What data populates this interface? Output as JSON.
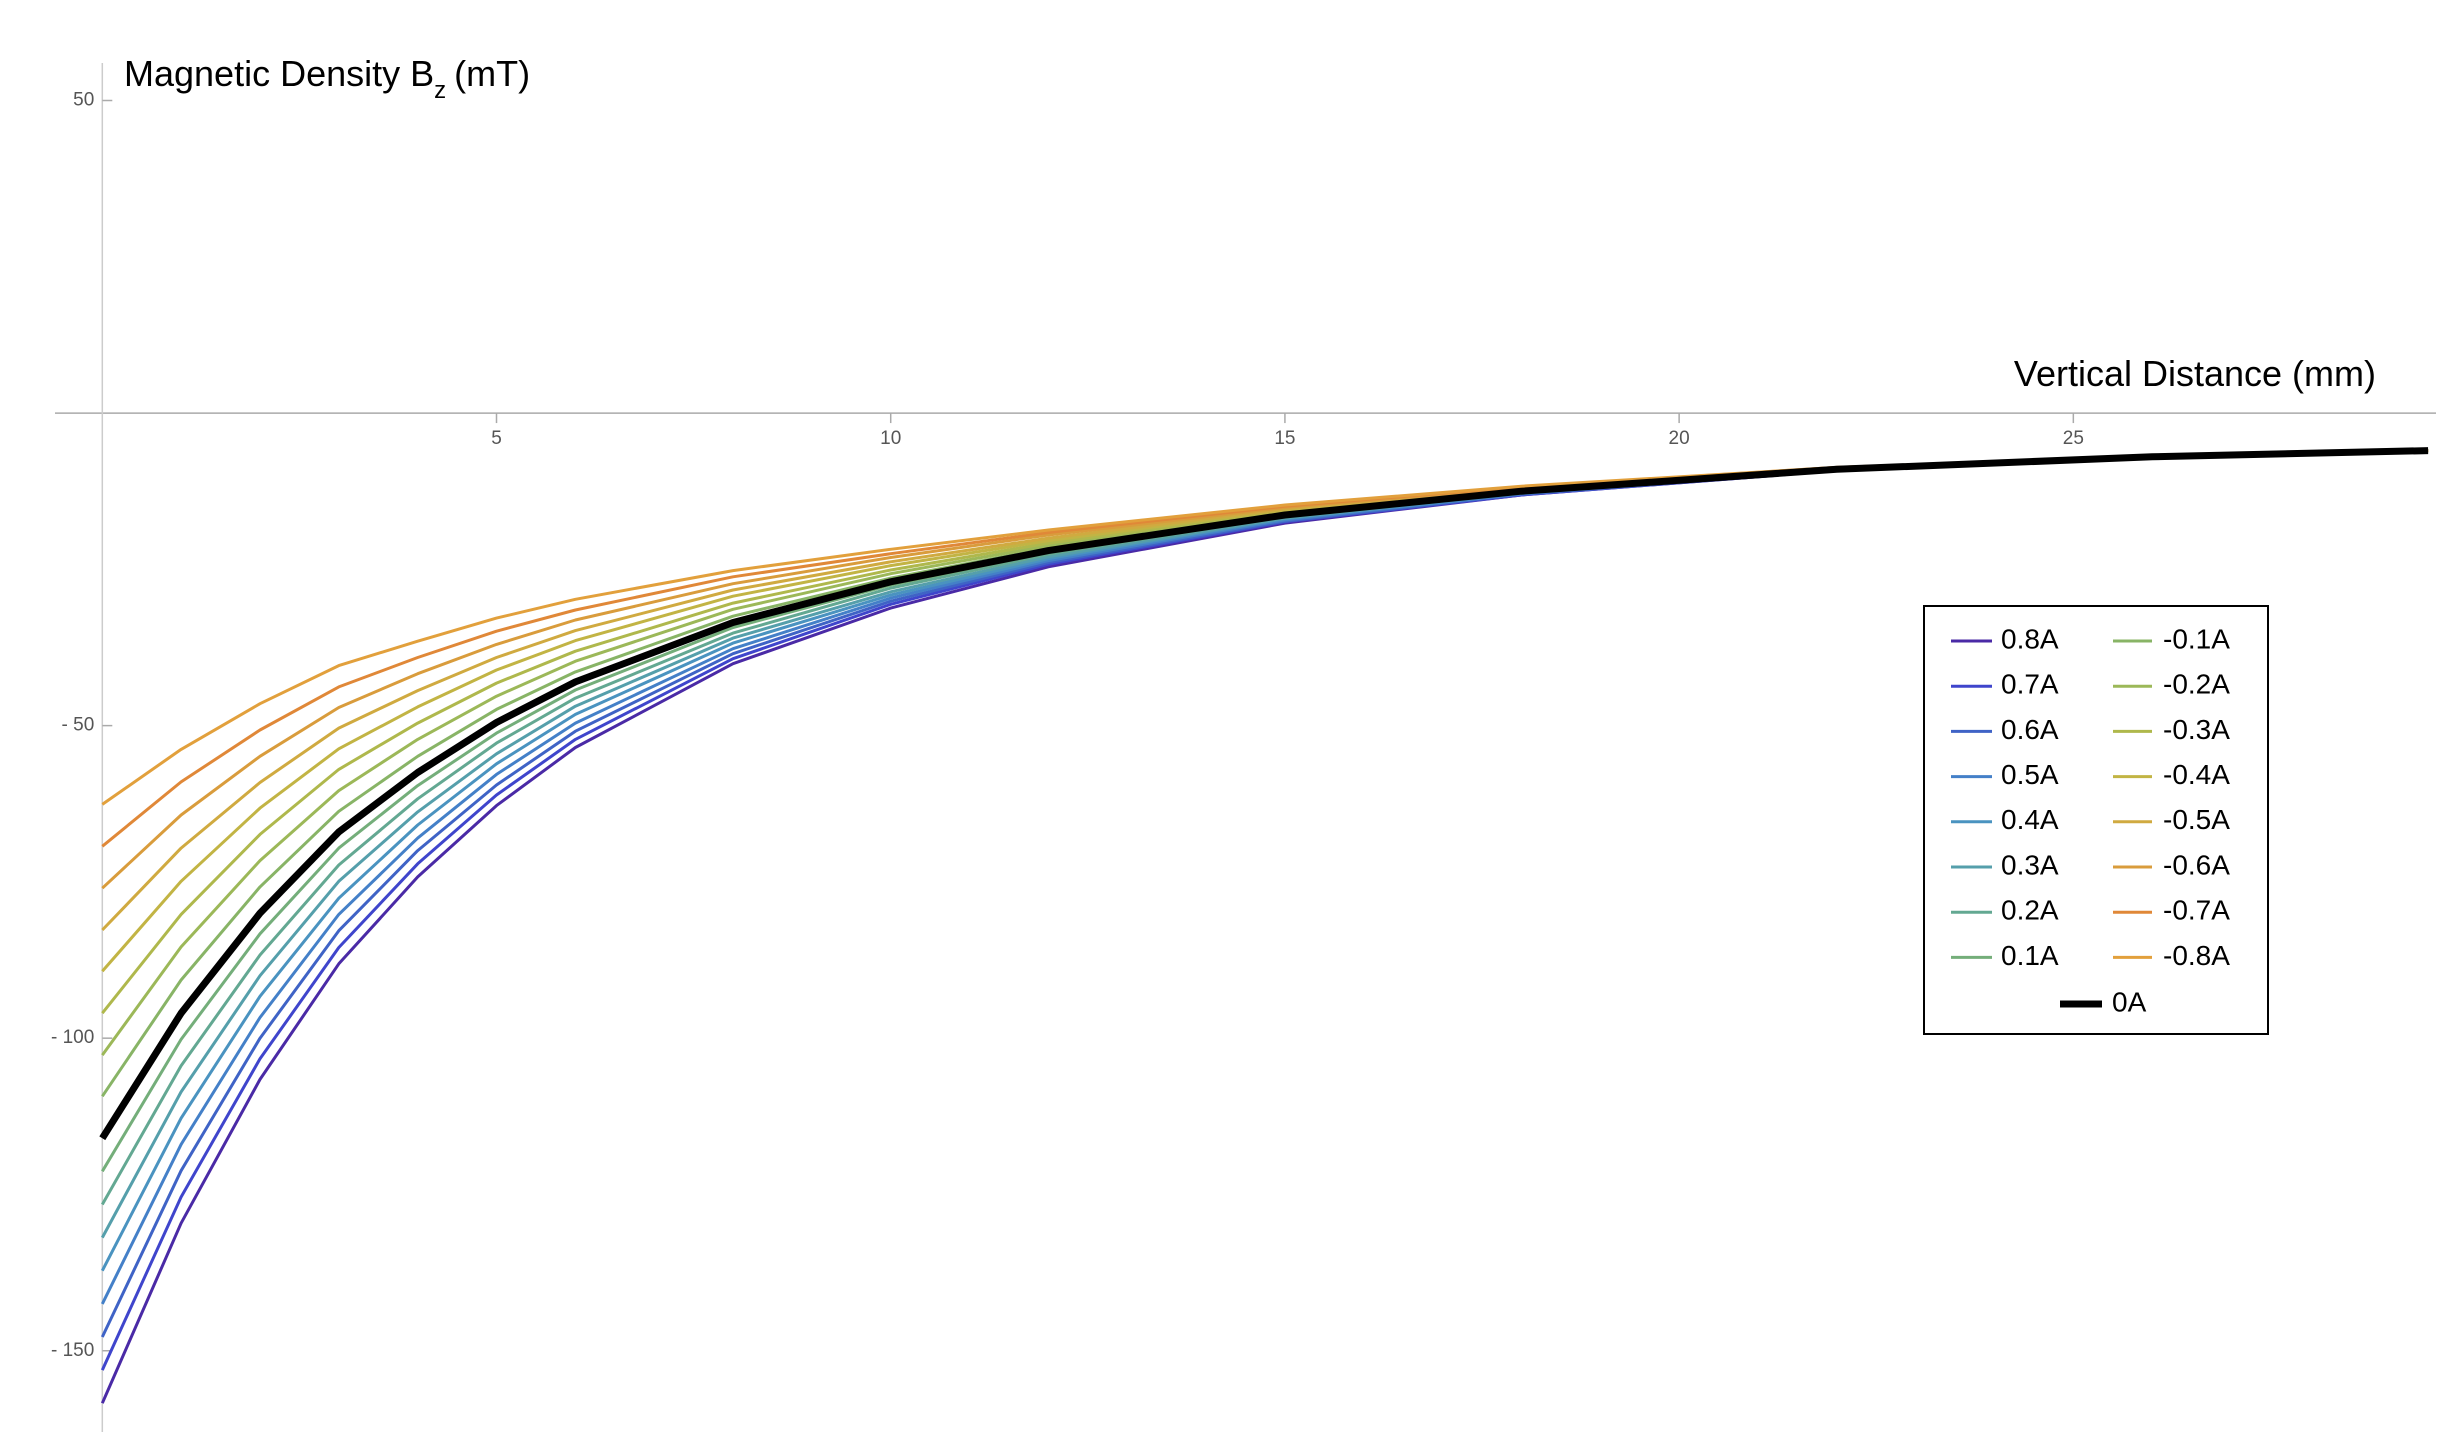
{
  "chart_data": {
    "type": "line",
    "ylabel": "Magnetic Density B",
    "ylabel_sub": "z",
    "ylabel_unit": "(mT)",
    "xlabel": "Vertical Distance (mm)",
    "xlim": [
      -0.6,
      29.6
    ],
    "ylim": [
      -163,
      56
    ],
    "xticks": [
      5,
      10,
      15,
      20,
      25
    ],
    "yticks": [
      {
        "value": 50,
        "label": "50"
      },
      {
        "value": -50,
        "label": "- 50"
      },
      {
        "value": -100,
        "label": "- 100"
      },
      {
        "value": -150,
        "label": "- 150"
      }
    ],
    "x": [
      0,
      1,
      2,
      3,
      4,
      5,
      6,
      8,
      10,
      12,
      15,
      18,
      22,
      26,
      29.5
    ],
    "legend": "right",
    "series": [
      {
        "name": "0.8A",
        "color": "#4a2aa6",
        "values": [
          -158.4,
          -129.6,
          -106.6,
          -88.1,
          -74.2,
          -62.8,
          -53.5,
          -40.1,
          -31.2,
          -24.6,
          -17.6,
          -13.1,
          -9.2,
          -7.1,
          -6
        ]
      },
      {
        "name": "0.7A",
        "color": "#3f45cc",
        "values": [
          -153.1,
          -125.4,
          -103.3,
          -85.5,
          -72.1,
          -61.1,
          -52.2,
          -39.3,
          -30.6,
          -24.2,
          -17.4,
          -13.1,
          -9.2,
          -7.1,
          -6
        ]
      },
      {
        "name": "0.6A",
        "color": "#3f63c6",
        "values": [
          -147.8,
          -121.2,
          -100,
          -82.8,
          -70,
          -59.5,
          -50.9,
          -38.5,
          -30.1,
          -23.9,
          -17.3,
          -13,
          -9.2,
          -7.1,
          -6
        ]
      },
      {
        "name": "0.5A",
        "color": "#4480c8",
        "values": [
          -142.5,
          -117,
          -96.7,
          -80.2,
          -68,
          -57.8,
          -49.6,
          -37.7,
          -29.6,
          -23.6,
          -17.1,
          -12.9,
          -9.2,
          -7.1,
          -6
        ]
      },
      {
        "name": "0.4A",
        "color": "#4a93c0",
        "values": [
          -137.2,
          -112.8,
          -93.3,
          -77.6,
          -65.9,
          -56.1,
          -48.2,
          -36.8,
          -29.1,
          -23.3,
          -16.9,
          -12.8,
          -9.1,
          -7,
          -6
        ]
      },
      {
        "name": "0.3A",
        "color": "#559fab",
        "values": [
          -131.9,
          -108.6,
          -90,
          -74.9,
          -63.8,
          -54.5,
          -46.9,
          -36,
          -28.6,
          -23,
          -16.8,
          -12.7,
          -9.1,
          -7,
          -6
        ]
      },
      {
        "name": "0.2A",
        "color": "#63a892",
        "values": [
          -126.6,
          -104.4,
          -86.7,
          -72.3,
          -61.7,
          -52.8,
          -45.6,
          -35.2,
          -28,
          -22.6,
          -16.6,
          -12.7,
          -9.1,
          -7,
          -6
        ]
      },
      {
        "name": "0.1A",
        "color": "#74ae7a",
        "values": [
          -121.3,
          -100.2,
          -83.3,
          -69.6,
          -59.6,
          -51.2,
          -44.3,
          -34.3,
          -27.5,
          -22.3,
          -16.5,
          -12.6,
          -9,
          -7,
          -6
        ]
      },
      {
        "name": "-0.1A",
        "color": "#88b466",
        "values": [
          -109.3,
          -90.7,
          -75.8,
          -63.7,
          -54.9,
          -47.4,
          -41.4,
          -32.5,
          -26.4,
          -21.6,
          -16.1,
          -12.4,
          -9,
          -7,
          -6
        ]
      },
      {
        "name": "-0.2A",
        "color": "#9cb858",
        "values": [
          -102.7,
          -85.4,
          -71.6,
          -60.4,
          -52.2,
          -45.3,
          -39.7,
          -31.4,
          -25.7,
          -21.2,
          -15.9,
          -12.3,
          -8.9,
          -7,
          -6
        ]
      },
      {
        "name": "-0.3A",
        "color": "#afb84c",
        "values": [
          -96,
          -80.2,
          -67.4,
          -57,
          -49.6,
          -43.2,
          -38.1,
          -30.4,
          -25.1,
          -20.8,
          -15.7,
          -12.2,
          -8.9,
          -7,
          -6
        ]
      },
      {
        "name": "-0.4A",
        "color": "#c2b444",
        "values": [
          -89.3,
          -74.9,
          -63.2,
          -53.7,
          -47,
          -41.1,
          -36.4,
          -29.3,
          -24.4,
          -20.4,
          -15.5,
          -12.1,
          -8.8,
          -6.9,
          -6
        ]
      },
      {
        "name": "-0.5A",
        "color": "#d0aa40",
        "values": [
          -82.7,
          -69.6,
          -59.1,
          -50.4,
          -44.4,
          -39.1,
          -34.8,
          -28.3,
          -23.8,
          -20,
          -15.3,
          -12,
          -8.8,
          -6.9,
          -6
        ]
      },
      {
        "name": "-0.6A",
        "color": "#d99c3c",
        "values": [
          -76,
          -64.3,
          -54.9,
          -47.1,
          -41.7,
          -37,
          -33.1,
          -27.3,
          -23.1,
          -19.5,
          -15.1,
          -11.9,
          -8.8,
          -6.9,
          -6
        ]
      },
      {
        "name": "-0.7A",
        "color": "#e08838",
        "values": [
          -69.3,
          -59,
          -50.7,
          -43.8,
          -39.1,
          -34.9,
          -31.5,
          -26.2,
          -22.5,
          -19.1,
          -14.9,
          -11.8,
          -8.7,
          -6.9,
          -6
        ]
      },
      {
        "name": "-0.8A",
        "color": "#e2a03c",
        "values": [
          -62.6,
          -53.8,
          -46.5,
          -40.4,
          -36.5,
          -32.8,
          -29.8,
          -25.2,
          -21.8,
          -18.7,
          -14.7,
          -11.7,
          -8.7,
          -6.9,
          -6
        ]
      },
      {
        "name": "0A",
        "color": "#000000",
        "width": 7,
        "values": [
          -116,
          -96,
          -80,
          -67,
          -57.5,
          -49.5,
          -43,
          -33.5,
          -27,
          -22,
          -16.3,
          -12.5,
          -9,
          -7,
          -6
        ]
      }
    ]
  }
}
